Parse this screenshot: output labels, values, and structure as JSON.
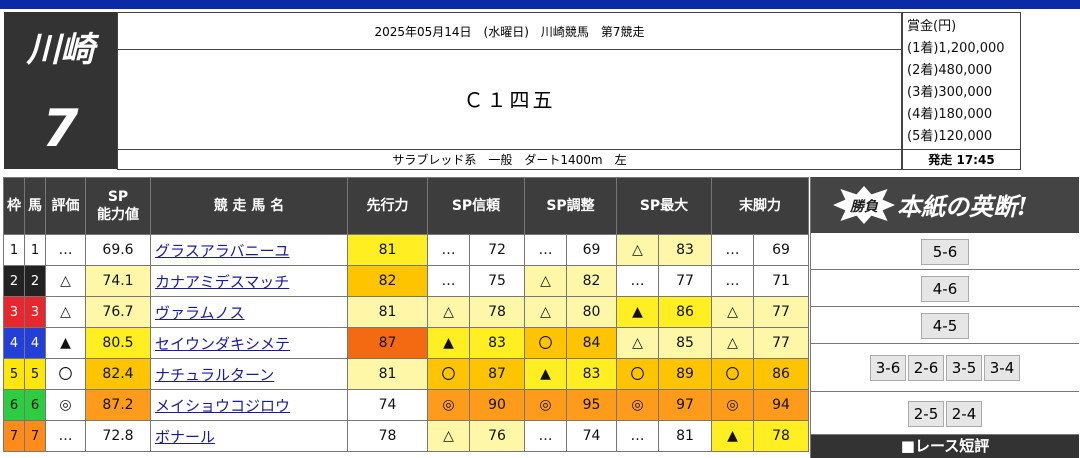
{
  "header": {
    "venue": "川崎",
    "race_number": "7",
    "date_line": "2025年05月14日　(水曜日)　川崎競馬　第7競走",
    "race_class": "Ｃ１四五",
    "conditions": "サラブレッド系　一般　ダート1400m　左",
    "prize_title": "賞金(円)",
    "prizes": [
      "(1着)1,200,000",
      "(2着)480,000",
      "(3着)300,000",
      "(4着)180,000",
      "(5着)120,000"
    ],
    "start_time": "発走 17:45"
  },
  "columns": {
    "waku": "枠",
    "uma": "馬",
    "rating": "評価",
    "sp_line1": "SP",
    "sp_line2": "能力値",
    "horse": "競 走 馬 名",
    "senko": "先行力",
    "sp_shinrai": "SP信頼",
    "sp_chosei": "SP調整",
    "sp_saidai": "SP最大",
    "matsuashi": "末脚力"
  },
  "colors": {
    "waku": {
      "1": "#ffffff",
      "2": "#222222",
      "3": "#e8262e",
      "4": "#2240d8",
      "5": "#ffe60a",
      "6": "#2ecc40",
      "7": "#ff8c1a"
    },
    "heat": {
      "none": "#ffffff",
      "light": "#fff7a8",
      "yellow": "#ffee22",
      "amber": "#ffc400",
      "orange": "#ff9b1a",
      "deep": "#f36a12"
    }
  },
  "rows": [
    {
      "waku": "1",
      "uma": "1",
      "rating": "…",
      "sp": "69.6",
      "sp_heat": "none",
      "horse": "グラスアラバニーユ",
      "senko": "81",
      "senko_heat": "yellow",
      "shinrai_mark": "…",
      "shinrai": "72",
      "shinrai_heat": "none",
      "chosei_mark": "…",
      "chosei": "69",
      "chosei_heat": "none",
      "saidai_mark": "△",
      "saidai": "83",
      "saidai_heat": "light",
      "matsu_mark": "…",
      "matsu": "69",
      "matsu_heat": "none"
    },
    {
      "waku": "2",
      "uma": "2",
      "rating": "△",
      "sp": "74.1",
      "sp_heat": "light",
      "horse": "カナアミデスマッチ",
      "senko": "82",
      "senko_heat": "amber",
      "shinrai_mark": "…",
      "shinrai": "75",
      "shinrai_heat": "none",
      "chosei_mark": "△",
      "chosei": "82",
      "chosei_heat": "light",
      "saidai_mark": "…",
      "saidai": "77",
      "saidai_heat": "none",
      "matsu_mark": "…",
      "matsu": "71",
      "matsu_heat": "none"
    },
    {
      "waku": "3",
      "uma": "3",
      "rating": "△",
      "sp": "76.7",
      "sp_heat": "light",
      "horse": "ヴァラムノス",
      "senko": "81",
      "senko_heat": "light",
      "shinrai_mark": "△",
      "shinrai": "78",
      "shinrai_heat": "light",
      "chosei_mark": "△",
      "chosei": "80",
      "chosei_heat": "light",
      "saidai_mark": "▲",
      "saidai": "86",
      "saidai_heat": "yellow",
      "matsu_mark": "△",
      "matsu": "77",
      "matsu_heat": "light"
    },
    {
      "waku": "4",
      "uma": "4",
      "rating": "▲",
      "sp": "80.5",
      "sp_heat": "yellow",
      "horse": "セイウンダキシメテ",
      "senko": "87",
      "senko_heat": "deep",
      "shinrai_mark": "▲",
      "shinrai": "83",
      "shinrai_heat": "yellow",
      "chosei_mark": "〇",
      "chosei": "84",
      "chosei_heat": "amber",
      "saidai_mark": "△",
      "saidai": "85",
      "saidai_heat": "light",
      "matsu_mark": "△",
      "matsu": "77",
      "matsu_heat": "light"
    },
    {
      "waku": "5",
      "uma": "5",
      "rating": "〇",
      "sp": "82.4",
      "sp_heat": "amber",
      "horse": "ナチュラルターン",
      "senko": "81",
      "senko_heat": "light",
      "shinrai_mark": "〇",
      "shinrai": "87",
      "shinrai_heat": "amber",
      "chosei_mark": "▲",
      "chosei": "83",
      "chosei_heat": "yellow",
      "saidai_mark": "〇",
      "saidai": "89",
      "saidai_heat": "amber",
      "matsu_mark": "〇",
      "matsu": "86",
      "matsu_heat": "amber"
    },
    {
      "waku": "6",
      "uma": "6",
      "rating": "◎",
      "sp": "87.2",
      "sp_heat": "orange",
      "horse": "メイショウコジロウ",
      "senko": "74",
      "senko_heat": "none",
      "shinrai_mark": "◎",
      "shinrai": "90",
      "shinrai_heat": "orange",
      "chosei_mark": "◎",
      "chosei": "95",
      "chosei_heat": "orange",
      "saidai_mark": "◎",
      "saidai": "97",
      "saidai_heat": "orange",
      "matsu_mark": "◎",
      "matsu": "94",
      "matsu_heat": "orange"
    },
    {
      "waku": "7",
      "uma": "7",
      "rating": "…",
      "sp": "72.8",
      "sp_heat": "none",
      "horse": "ボナール",
      "senko": "78",
      "senko_heat": "none",
      "shinrai_mark": "△",
      "shinrai": "76",
      "shinrai_heat": "light",
      "chosei_mark": "…",
      "chosei": "74",
      "chosei_heat": "none",
      "saidai_mark": "…",
      "saidai": "81",
      "saidai_heat": "none",
      "matsu_mark": "▲",
      "matsu": "78",
      "matsu_heat": "yellow"
    }
  ],
  "panel": {
    "badge": "勝負",
    "title": "本紙の英断!",
    "bets": [
      [
        "5-6"
      ],
      [
        "4-6"
      ],
      [
        "4-5"
      ],
      [
        "3-6",
        "2-6",
        "3-5",
        "3-4"
      ],
      [
        "2-5",
        "2-4"
      ]
    ],
    "footer": "■レース短評"
  }
}
